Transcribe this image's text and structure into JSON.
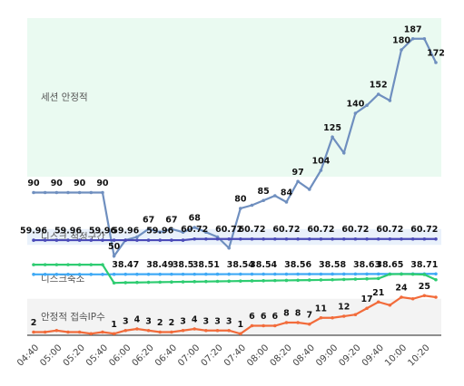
{
  "chart_data": {
    "type": "line",
    "categories": [
      "04:40",
      null,
      "05:00",
      null,
      "05:20",
      null,
      "05:40",
      null,
      "06:00",
      null,
      "06:20",
      null,
      "06:40",
      null,
      "07:00",
      null,
      "07:20",
      null,
      "07:40",
      null,
      "08:00",
      null,
      "08:20",
      null,
      "08:40",
      null,
      "09:00",
      null,
      "09:20",
      null,
      "09:40",
      null,
      "10:00",
      null,
      "10:20",
      null
    ],
    "ylim": [
      0,
      200
    ],
    "bands": [
      {
        "label": "세션 안정적",
        "range": [
          100,
          200
        ],
        "color": "#eafaf1"
      },
      {
        "label": "디스크 적정구간",
        "range": [
          57,
          67
        ],
        "color": "#e9f1fb"
      },
      {
        "label": "디스크축소",
        "range": [
          23,
          48
        ],
        "color": "#ffffff"
      },
      {
        "label": "안정적 접속IP수",
        "range": [
          0,
          23
        ],
        "color": "#f3f3f3"
      }
    ],
    "series": [
      {
        "color": "#6f8fbf",
        "values": [
          90,
          90,
          90,
          90,
          90,
          90,
          90,
          50,
          60,
          62,
          67,
          65,
          67,
          65,
          68,
          65,
          62,
          55,
          80,
          82,
          85,
          88,
          84,
          97,
          92,
          104,
          125,
          115,
          140,
          145,
          152,
          148,
          180,
          187,
          187,
          172
        ],
        "value_labels": [
          90,
          null,
          90,
          null,
          90,
          null,
          90,
          50,
          null,
          null,
          67,
          null,
          67,
          null,
          68,
          null,
          null,
          null,
          80,
          null,
          85,
          null,
          84,
          97,
          null,
          104,
          125,
          null,
          140,
          null,
          152,
          null,
          180,
          187,
          null,
          172
        ]
      },
      {
        "color": "#4b4bb8",
        "values": [
          59.96,
          59.96,
          59.96,
          59.96,
          59.96,
          59.96,
          59.96,
          59.96,
          59.96,
          59.96,
          59.96,
          59.96,
          59.96,
          59.96,
          60.72,
          60.72,
          60.72,
          60.72,
          60.72,
          60.72,
          60.72,
          60.72,
          60.72,
          60.72,
          60.72,
          60.72,
          60.72,
          60.72,
          60.72,
          60.72,
          60.72,
          60.72,
          60.72,
          60.72,
          60.72,
          60.72
        ],
        "value_labels": [
          59.96,
          null,
          null,
          59.96,
          null,
          null,
          59.96,
          null,
          59.96,
          null,
          null,
          59.96,
          null,
          null,
          60.72,
          null,
          null,
          60.72,
          null,
          60.72,
          null,
          null,
          60.72,
          null,
          null,
          60.72,
          null,
          null,
          60.72,
          null,
          null,
          60.72,
          null,
          null,
          60.72,
          null
        ]
      },
      {
        "color": "#3fa9f5",
        "values": [
          38.4,
          38.4,
          38.4,
          38.4,
          38.4,
          38.4,
          38.4,
          38.45,
          38.47,
          38.48,
          38.48,
          38.49,
          38.5,
          38.5,
          38.5,
          38.51,
          38.52,
          38.53,
          38.54,
          38.54,
          38.54,
          38.55,
          38.55,
          38.56,
          38.57,
          38.57,
          38.58,
          38.6,
          38.62,
          38.63,
          38.64,
          38.65,
          38.68,
          38.7,
          38.71,
          38.71
        ],
        "value_labels": [
          null,
          null,
          null,
          null,
          null,
          null,
          null,
          null,
          38.47,
          null,
          null,
          38.49,
          null,
          38.5,
          null,
          38.51,
          null,
          null,
          38.54,
          null,
          38.54,
          null,
          null,
          38.56,
          null,
          null,
          38.58,
          null,
          null,
          38.63,
          null,
          38.65,
          null,
          null,
          38.71,
          null
        ]
      },
      {
        "color": "#2ecc71",
        "values": [
          44.5,
          44.5,
          44.5,
          44.5,
          44.5,
          44.5,
          44.5,
          33,
          33.2,
          33.3,
          33.4,
          33.5,
          33.6,
          33.7,
          33.8,
          33.9,
          34,
          34.1,
          34.2,
          34.3,
          34.4,
          34.5,
          34.6,
          34.7,
          34.8,
          34.9,
          35,
          35.2,
          35.4,
          35.6,
          35.8,
          38.5,
          38.6,
          38.5,
          38.3,
          35
        ]
      },
      {
        "color": "#f26b3a",
        "values": [
          2,
          2,
          3,
          2,
          2,
          1,
          2,
          1,
          3,
          4,
          3,
          2,
          2,
          3,
          4,
          3,
          3,
          3,
          1,
          6,
          6,
          6,
          8,
          8,
          7,
          11,
          11,
          12,
          13,
          17,
          21,
          19,
          24,
          23,
          25,
          24
        ],
        "value_labels": [
          2,
          null,
          null,
          null,
          null,
          null,
          null,
          1,
          3,
          4,
          3,
          2,
          2,
          3,
          4,
          3,
          3,
          3,
          1,
          6,
          6,
          6,
          8,
          8,
          7,
          11,
          null,
          12,
          null,
          17,
          21,
          null,
          24,
          null,
          25,
          null
        ]
      }
    ]
  }
}
